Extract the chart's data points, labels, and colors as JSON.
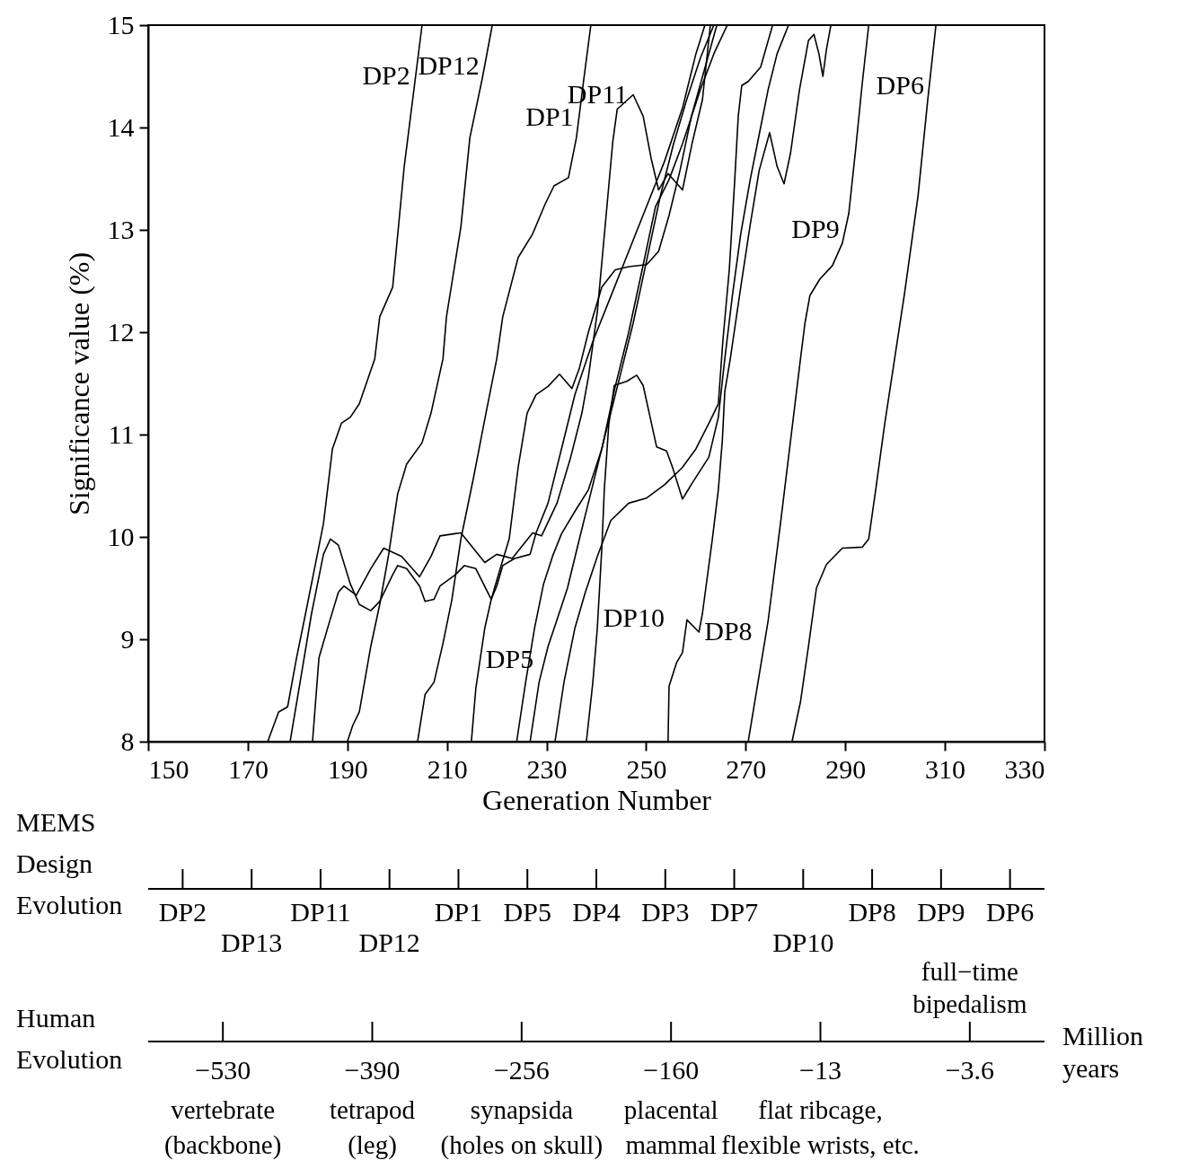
{
  "chart_data": [
    {
      "type": "line",
      "xlabel": "Generation Number",
      "ylabel": "Significance value (%)",
      "xlim": [
        150,
        330
      ],
      "xticks": [
        150,
        170,
        190,
        210,
        230,
        250,
        270,
        290,
        310,
        330
      ],
      "ylim": [
        8,
        15
      ],
      "yticks": [
        8,
        9,
        10,
        11,
        12,
        13,
        14,
        15
      ],
      "series": [
        {
          "color": "#000000",
          "x": [
            174.0,
            176.2,
            178.0,
            179.8,
            181.6,
            183.4,
            185.2,
            187.0,
            188.8,
            190.6,
            192.4,
            195.5,
            196.5,
            199.1,
            201.4,
            205.0
          ],
          "values": [
            8,
            8.29,
            8.34,
            8.82,
            9.25,
            9.69,
            10.13,
            10.86,
            11.11,
            11.17,
            11.3,
            11.74,
            12.15,
            12.44,
            13.61,
            15
          ]
        },
        {
          "color": "#000000",
          "x": [
            190.0,
            191.1,
            192.4,
            194.7,
            196.5,
            198.3,
            200.1,
            201.9,
            205.0,
            206.8,
            209.2,
            209.9,
            212.8,
            214.6,
            217.1,
            219.1
          ],
          "values": [
            8,
            8.16,
            8.29,
            8.93,
            9.34,
            9.83,
            10.42,
            10.71,
            10.92,
            11.21,
            11.74,
            12.15,
            13.03,
            13.9,
            14.48,
            15
          ]
        },
        {
          "color": "#000000",
          "x": [
            204.1,
            205.6,
            207.4,
            209.2,
            211.0,
            212.8,
            215.3,
            217.6,
            220.0,
            221.2,
            224.3,
            227.2,
            229.7,
            231.5,
            234.4,
            236.0,
            237.5,
            238.9
          ],
          "values": [
            8,
            8.46,
            8.58,
            8.96,
            9.39,
            9.98,
            10.57,
            11.15,
            11.74,
            12.15,
            12.73,
            12.96,
            13.25,
            13.43,
            13.51,
            13.9,
            14.48,
            15
          ]
        },
        {
          "color": "#000000",
          "x": [
            178.5,
            180.3,
            182.8,
            185.2,
            186.6,
            188.2,
            190.6,
            192.4,
            194.7,
            196.5,
            199.1,
            200.1,
            201.9,
            204.5,
            205.6,
            207.4,
            208.6,
            211.7,
            213.5,
            215.8,
            218.9,
            220.0,
            221.2,
            223.6,
            226.7,
            227.9,
            230.3,
            233.0,
            235.7,
            239.3,
            242.9,
            246.5,
            250.1,
            253.7,
            257.3,
            260.0,
            261.8
          ],
          "values": [
            8,
            8.52,
            9.25,
            9.83,
            9.98,
            9.92,
            9.54,
            9.34,
            9.28,
            9.37,
            9.63,
            9.72,
            9.69,
            9.52,
            9.37,
            9.39,
            9.52,
            9.63,
            9.72,
            9.69,
            9.39,
            9.52,
            9.72,
            9.79,
            9.83,
            10.04,
            10.33,
            10.86,
            11.39,
            11.91,
            12.35,
            12.79,
            13.23,
            13.67,
            14.19,
            14.72,
            15
          ]
        },
        {
          "color": "#000000",
          "x": [
            183.0,
            184.3,
            186.4,
            188.2,
            189.3,
            191.8,
            194.7,
            197.3,
            200.9,
            204.5,
            206.8,
            208.6,
            212.8,
            217.6,
            220.0,
            223.1,
            227.2,
            229.0,
            232.1,
            234.8,
            237.1,
            238.4,
            239.3,
            240.2,
            242.0,
            243.3,
            244.2,
            247.4,
            249.4,
            251.0,
            252.5,
            254.4,
            257.3,
            259.3,
            261.3,
            262.9
          ],
          "values": [
            8,
            8.82,
            9.17,
            9.46,
            9.52,
            9.43,
            9.69,
            9.89,
            9.81,
            9.61,
            9.81,
            10.01,
            10.04,
            9.75,
            9.83,
            9.79,
            10.04,
            10.01,
            10.33,
            10.77,
            11.21,
            11.56,
            11.88,
            12.2,
            13.16,
            13.86,
            14.18,
            14.32,
            14.11,
            13.7,
            13.39,
            13.55,
            13.39,
            13.86,
            14.27,
            15
          ]
        },
        {
          "color": "#000000",
          "x": [
            214.9,
            215.8,
            217.6,
            218.9,
            220.7,
            222.5,
            224.3,
            226.1,
            227.9,
            230.3,
            232.6,
            235.1,
            236.6,
            238.4,
            241.1,
            243.8,
            246.5,
            250.1,
            252.5,
            254.6,
            256.8,
            259.1,
            264.2
          ],
          "values": [
            8,
            8.52,
            9.11,
            9.39,
            9.69,
            9.98,
            10.68,
            11.21,
            11.39,
            11.47,
            11.59,
            11.45,
            11.65,
            12.0,
            12.44,
            12.61,
            12.64,
            12.66,
            12.79,
            13.14,
            13.58,
            14.11,
            15
          ]
        },
        {
          "color": "#000000",
          "x": [
            224.0,
            225.8,
            227.6,
            229.4,
            231.2,
            233.0,
            235.7,
            238.4,
            241.1,
            243.8,
            246.5,
            249.2,
            251.9,
            254.6,
            257.3,
            260.9,
            263.6,
            266.3
          ],
          "values": [
            8,
            8.58,
            9.11,
            9.54,
            9.81,
            10.03,
            10.25,
            10.46,
            10.86,
            11.47,
            12.0,
            12.61,
            13.23,
            13.49,
            13.84,
            14.37,
            14.72,
            15
          ]
        },
        {
          "color": "#000000",
          "x": [
            226.7,
            228.5,
            230.3,
            232.1,
            234.2,
            236.6,
            239.3,
            242.0,
            244.7,
            247.4,
            250.1,
            252.8,
            255.5,
            258.2,
            260.9,
            263.6
          ],
          "values": [
            8,
            8.58,
            8.93,
            9.19,
            9.5,
            9.98,
            10.51,
            11.04,
            11.56,
            12.09,
            12.7,
            13.32,
            13.84,
            14.28,
            14.68,
            15
          ]
        },
        {
          "color": "#000000",
          "x": [
            231.7,
            233.5,
            235.7,
            237.8,
            240.2,
            242.9,
            246.5,
            250.1,
            253.7,
            257.3,
            260.0,
            262.7,
            264.5,
            265.4,
            266.7,
            267.8,
            268.5,
            269.2,
            270.5,
            273.0,
            275.4
          ],
          "values": [
            8,
            8.58,
            9.11,
            9.46,
            9.81,
            10.16,
            10.33,
            10.38,
            10.51,
            10.68,
            10.86,
            11.12,
            11.3,
            11.91,
            12.61,
            13.49,
            14.11,
            14.41,
            14.45,
            14.59,
            15
          ]
        },
        {
          "color": "#000000",
          "x": [
            238.0,
            239.3,
            240.2,
            241.1,
            241.6,
            242.5,
            243.6,
            246.1,
            248.1,
            249.4,
            250.8,
            252.1,
            254.1,
            255.3,
            257.3,
            259.3,
            262.6,
            264.5,
            265.8,
            267.3,
            269.0,
            270.9,
            272.7,
            274.5,
            276.3,
            278.6
          ],
          "values": [
            8,
            8.58,
            9.11,
            9.89,
            10.46,
            11.1,
            11.48,
            11.52,
            11.58,
            11.48,
            11.17,
            10.88,
            10.84,
            10.68,
            10.37,
            10.53,
            10.78,
            11.17,
            11.74,
            12.35,
            12.96,
            13.49,
            13.93,
            14.37,
            14.72,
            15
          ]
        },
        {
          "color": "#000000",
          "x": [
            254.4,
            254.6,
            256.1,
            257.3,
            258.2,
            260.6,
            261.3,
            263.3,
            264.5,
            265.3,
            265.8,
            266.9,
            269.0,
            270.9,
            272.7,
            274.8,
            276.3,
            277.7,
            279.0,
            280.8,
            282.6,
            283.7,
            284.7,
            285.5,
            286.2,
            287.1
          ],
          "values": [
            8,
            8.54,
            8.77,
            8.87,
            9.19,
            9.07,
            9.25,
            9.98,
            10.46,
            10.94,
            11.42,
            11.74,
            12.44,
            13.05,
            13.58,
            13.95,
            13.62,
            13.45,
            13.75,
            14.37,
            14.85,
            14.91,
            14.72,
            14.5,
            14.76,
            15
          ]
        },
        {
          "color": "#000000",
          "x": [
            270.5,
            274.5,
            277.0,
            279.0,
            281.0,
            281.9,
            282.9,
            284.9,
            287.4,
            289.4,
            290.7,
            292.1,
            293.4,
            294.7
          ],
          "values": [
            8,
            9.18,
            10.14,
            10.94,
            11.74,
            12.09,
            12.36,
            12.52,
            12.65,
            12.87,
            13.16,
            13.8,
            14.43,
            15
          ]
        },
        {
          "color": "#000000",
          "x": [
            279.3,
            281.0,
            282.6,
            284.2,
            286.2,
            289.4,
            293.4,
            294.7,
            296.1,
            297.9,
            299.9,
            301.9,
            304.6,
            306.6,
            308.2
          ],
          "values": [
            8,
            8.39,
            8.93,
            9.5,
            9.73,
            9.89,
            9.9,
            9.98,
            10.46,
            11.1,
            11.74,
            12.38,
            13.33,
            14.29,
            15
          ]
        }
      ],
      "annotations": [
        {
          "text": "DP2",
          "x": 203.7,
          "y": 14.5
        },
        {
          "text": "DP12",
          "x": 217.6,
          "y": 14.6
        },
        {
          "text": "DP1",
          "x": 236.5,
          "y": 14.1
        },
        {
          "text": "DP11",
          "x": 247.4,
          "y": 14.32
        },
        {
          "text": "DP6",
          "x": 306.9,
          "y": 14.4
        },
        {
          "text": "DP9",
          "x": 289.9,
          "y": 13.0
        },
        {
          "text": "DP10",
          "x": 240.3,
          "y": 9.2
        },
        {
          "text": "DP8",
          "x": 260.6,
          "y": 9.07
        },
        {
          "text": "DP5",
          "x": 216.7,
          "y": 8.8
        }
      ]
    },
    {
      "type": "other",
      "ylabel": "MEMS\nDesign\nEvolution",
      "categories": [
        "DP2",
        "DP13",
        "DP11",
        "DP12",
        "DP1",
        "DP5",
        "DP4",
        "DP3",
        "DP7",
        "DP10",
        "DP8",
        "DP9",
        "DP6"
      ]
    },
    {
      "type": "other",
      "ylabel": "Human\nEvolution",
      "xlabel": "Million\nyears",
      "categories": [
        "−530",
        "−390",
        "−256",
        "−160",
        "−13",
        "−3.6"
      ],
      "annotations": [
        {
          "text": "vertebrate\n(backbone)",
          "x": "−530"
        },
        {
          "text": "tetrapod\n(leg)",
          "x": "−390"
        },
        {
          "text": "synapsida\n(holes on skull)",
          "x": "−256"
        },
        {
          "text": "placental\nmammal",
          "x": "−160"
        },
        {
          "text": "flat ribcage,\nflexible wrists, etc.",
          "x": "−13"
        },
        {
          "text": "full−time\nbipedalism",
          "x": "−3.6"
        }
      ]
    }
  ]
}
